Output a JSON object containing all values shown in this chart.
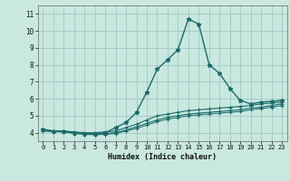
{
  "title": "",
  "xlabel": "Humidex (Indice chaleur)",
  "xlim": [
    -0.5,
    23.5
  ],
  "ylim": [
    3.5,
    11.5
  ],
  "yticks": [
    4,
    5,
    6,
    7,
    8,
    9,
    10,
    11
  ],
  "xticks": [
    0,
    1,
    2,
    3,
    4,
    5,
    6,
    7,
    8,
    9,
    10,
    11,
    12,
    13,
    14,
    15,
    16,
    17,
    18,
    19,
    20,
    21,
    22,
    23
  ],
  "bg_color": "#c8e8e0",
  "line_color": "#1a6b6b",
  "grid_color": "#a0c8c0",
  "series": [
    {
      "x": [
        0,
        1,
        2,
        3,
        4,
        5,
        6,
        7,
        8,
        9,
        10,
        11,
        12,
        13,
        14,
        15,
        16,
        17,
        18,
        19,
        20,
        21,
        22,
        23
      ],
      "y": [
        4.2,
        4.1,
        4.1,
        4.0,
        3.95,
        3.95,
        4.0,
        4.3,
        4.6,
        5.2,
        6.4,
        7.75,
        8.3,
        8.9,
        10.7,
        10.4,
        8.0,
        7.5,
        6.6,
        5.9,
        5.7,
        5.8,
        5.85,
        5.9
      ],
      "marker": "*",
      "ms": 3.5,
      "lw": 1.0
    },
    {
      "x": [
        0,
        1,
        2,
        3,
        4,
        5,
        6,
        7,
        8,
        9,
        10,
        11,
        12,
        13,
        14,
        15,
        16,
        17,
        18,
        19,
        20,
        21,
        22,
        23
      ],
      "y": [
        4.2,
        4.1,
        4.1,
        4.05,
        4.0,
        4.0,
        4.05,
        4.1,
        4.3,
        4.5,
        4.75,
        5.0,
        5.1,
        5.2,
        5.3,
        5.35,
        5.4,
        5.45,
        5.5,
        5.55,
        5.6,
        5.7,
        5.75,
        5.8
      ],
      "marker": "+",
      "ms": 3.0,
      "lw": 0.8
    },
    {
      "x": [
        0,
        1,
        2,
        3,
        4,
        5,
        6,
        7,
        8,
        9,
        10,
        11,
        12,
        13,
        14,
        15,
        16,
        17,
        18,
        19,
        20,
        21,
        22,
        23
      ],
      "y": [
        4.15,
        4.1,
        4.05,
        4.0,
        3.95,
        3.9,
        3.95,
        4.0,
        4.15,
        4.35,
        4.55,
        4.75,
        4.9,
        5.0,
        5.1,
        5.15,
        5.2,
        5.25,
        5.3,
        5.35,
        5.45,
        5.5,
        5.6,
        5.7
      ],
      "marker": "+",
      "ms": 3.0,
      "lw": 0.8
    },
    {
      "x": [
        0,
        1,
        2,
        3,
        4,
        5,
        6,
        7,
        8,
        9,
        10,
        11,
        12,
        13,
        14,
        15,
        16,
        17,
        18,
        19,
        20,
        21,
        22,
        23
      ],
      "y": [
        4.1,
        4.05,
        4.05,
        3.95,
        3.9,
        3.88,
        3.9,
        3.95,
        4.1,
        4.25,
        4.45,
        4.65,
        4.8,
        4.9,
        5.0,
        5.05,
        5.1,
        5.15,
        5.2,
        5.25,
        5.35,
        5.42,
        5.5,
        5.6
      ],
      "marker": "+",
      "ms": 2.5,
      "lw": 0.7
    }
  ]
}
